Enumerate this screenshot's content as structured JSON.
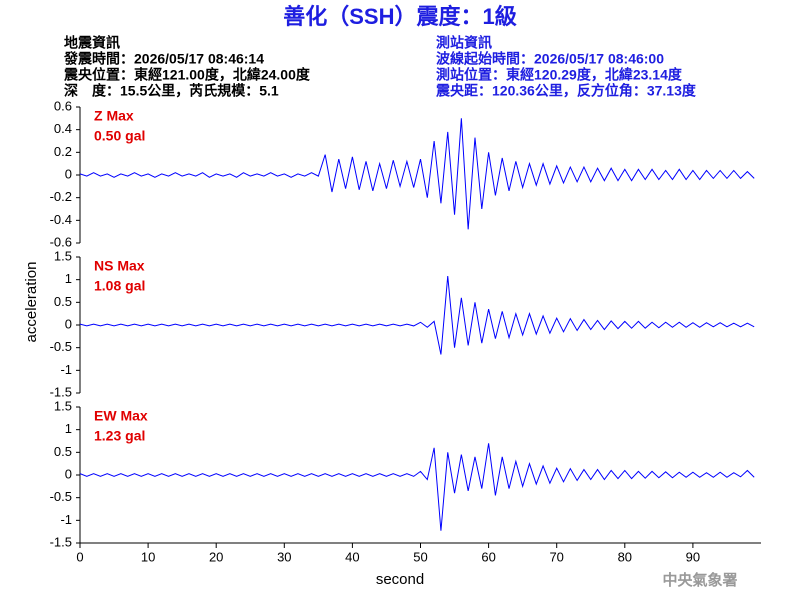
{
  "header": {
    "title": "善化（SSH）震度：1級",
    "left": [
      "地震資訊",
      "發震時間：2026/05/17 08:46:14",
      "震央位置：東經121.00度，北緯24.00度",
      "深　度：15.5公里，芮氏規模：5.1"
    ],
    "right": [
      "測站資訊",
      "波線起始時間：2026/05/17 08:46:00",
      "測站位置：東經120.29度，北緯23.14度",
      "震央距：120.36公里，反方位角：37.13度"
    ],
    "footer": "中央氣象署"
  },
  "chart_data": {
    "type": "line",
    "xlabel": "second",
    "ylabel": "acceleration",
    "xlim": [
      0,
      100
    ],
    "xticks": [
      0,
      10,
      20,
      30,
      40,
      50,
      60,
      70,
      80,
      90
    ],
    "x": [
      0,
      1,
      2,
      3,
      4,
      5,
      6,
      7,
      8,
      9,
      10,
      11,
      12,
      13,
      14,
      15,
      16,
      17,
      18,
      19,
      20,
      21,
      22,
      23,
      24,
      25,
      26,
      27,
      28,
      29,
      30,
      31,
      32,
      33,
      34,
      35,
      36,
      37,
      38,
      39,
      40,
      41,
      42,
      43,
      44,
      45,
      46,
      47,
      48,
      49,
      50,
      51,
      52,
      53,
      54,
      55,
      56,
      57,
      58,
      59,
      60,
      61,
      62,
      63,
      64,
      65,
      66,
      67,
      68,
      69,
      70,
      71,
      72,
      73,
      74,
      75,
      76,
      77,
      78,
      79,
      80,
      81,
      82,
      83,
      84,
      85,
      86,
      87,
      88,
      89,
      90,
      91,
      92,
      93,
      94,
      95,
      96,
      97,
      98,
      99
    ],
    "panels": [
      {
        "name": "Z Max",
        "max_label": "0.50 gal",
        "color": "#0000ff",
        "ylim": [
          -0.6,
          0.6
        ],
        "yticks": [
          0.6,
          0.4,
          0.2,
          0,
          -0.2,
          -0.4,
          -0.6
        ],
        "values": [
          0.01,
          -0.01,
          0.02,
          -0.01,
          0.01,
          -0.02,
          0.01,
          -0.01,
          0.02,
          -0.01,
          0.01,
          -0.02,
          0.01,
          -0.01,
          0.02,
          -0.01,
          0.01,
          -0.01,
          0.02,
          -0.02,
          0.01,
          -0.01,
          0.01,
          -0.02,
          0.02,
          -0.01,
          0.01,
          -0.01,
          0.02,
          -0.01,
          0.01,
          -0.02,
          0.01,
          -0.01,
          0.02,
          -0.01,
          0.18,
          -0.15,
          0.14,
          -0.12,
          0.16,
          -0.13,
          0.12,
          -0.14,
          0.1,
          -0.12,
          0.13,
          -0.1,
          0.12,
          -0.11,
          0.14,
          -0.2,
          0.3,
          -0.25,
          0.38,
          -0.35,
          0.5,
          -0.48,
          0.33,
          -0.3,
          0.2,
          -0.18,
          0.15,
          -0.14,
          0.12,
          -0.11,
          0.1,
          -0.09,
          0.1,
          -0.08,
          0.08,
          -0.07,
          0.07,
          -0.06,
          0.07,
          -0.06,
          0.06,
          -0.05,
          0.06,
          -0.05,
          0.05,
          -0.05,
          0.05,
          -0.04,
          0.05,
          -0.04,
          0.04,
          -0.04,
          0.05,
          -0.04,
          0.04,
          -0.04,
          0.04,
          -0.03,
          0.04,
          -0.03,
          0.04,
          -0.03,
          0.03,
          -0.03
        ]
      },
      {
        "name": "NS Max",
        "max_label": "1.08 gal",
        "color": "#0000ff",
        "ylim": [
          -1.5,
          1.5
        ],
        "yticks": [
          1.5,
          1,
          0.5,
          0,
          -0.5,
          -1,
          -1.5
        ],
        "values": [
          0.02,
          -0.02,
          0.02,
          -0.02,
          0.02,
          -0.02,
          0.02,
          -0.02,
          0.02,
          -0.02,
          0.02,
          -0.02,
          0.02,
          -0.02,
          0.02,
          -0.02,
          0.02,
          -0.02,
          0.02,
          -0.02,
          0.02,
          -0.02,
          0.02,
          -0.02,
          0.02,
          -0.02,
          0.02,
          -0.02,
          0.02,
          -0.02,
          0.02,
          -0.02,
          0.02,
          -0.02,
          0.02,
          -0.02,
          0.02,
          -0.02,
          0.02,
          -0.02,
          0.02,
          -0.02,
          0.02,
          -0.02,
          0.02,
          -0.02,
          0.02,
          -0.02,
          0.02,
          -0.02,
          0.06,
          -0.05,
          0.08,
          -0.65,
          1.08,
          -0.5,
          0.6,
          -0.45,
          0.5,
          -0.4,
          0.35,
          -0.3,
          0.3,
          -0.28,
          0.25,
          -0.22,
          0.25,
          -0.2,
          0.2,
          -0.18,
          0.15,
          -0.15,
          0.14,
          -0.12,
          0.12,
          -0.1,
          0.1,
          -0.1,
          0.09,
          -0.08,
          0.08,
          -0.07,
          0.08,
          -0.07,
          0.06,
          -0.06,
          0.06,
          -0.05,
          0.06,
          -0.05,
          0.05,
          -0.05,
          0.05,
          -0.04,
          0.05,
          -0.04,
          0.04,
          -0.04,
          0.04,
          -0.04
        ]
      },
      {
        "name": "EW Max",
        "max_label": "1.23 gal",
        "color": "#0000ff",
        "ylim": [
          -1.5,
          1.5
        ],
        "yticks": [
          1.5,
          1,
          0.5,
          0,
          -0.5,
          -1,
          -1.5
        ],
        "values": [
          0.03,
          -0.03,
          0.03,
          -0.03,
          0.03,
          -0.03,
          0.03,
          -0.03,
          0.03,
          -0.03,
          0.03,
          -0.03,
          0.03,
          -0.03,
          0.03,
          -0.03,
          0.03,
          -0.03,
          0.03,
          -0.03,
          0.03,
          -0.03,
          0.03,
          -0.03,
          0.03,
          -0.03,
          0.03,
          -0.03,
          0.03,
          -0.03,
          0.03,
          -0.03,
          0.03,
          -0.03,
          0.03,
          -0.03,
          0.03,
          -0.03,
          0.03,
          -0.03,
          0.03,
          -0.03,
          0.03,
          -0.03,
          0.03,
          -0.03,
          0.03,
          -0.03,
          0.03,
          -0.03,
          0.08,
          -0.1,
          0.6,
          -1.23,
          0.5,
          -0.4,
          0.45,
          -0.35,
          0.4,
          -0.3,
          0.7,
          -0.45,
          0.4,
          -0.3,
          0.3,
          -0.25,
          0.25,
          -0.2,
          0.2,
          -0.18,
          0.15,
          -0.15,
          0.14,
          -0.12,
          0.12,
          -0.1,
          0.12,
          -0.1,
          0.1,
          -0.08,
          0.1,
          -0.08,
          0.08,
          -0.07,
          0.08,
          -0.06,
          0.07,
          -0.06,
          0.06,
          -0.05,
          0.06,
          -0.05,
          0.05,
          -0.05,
          0.06,
          -0.05,
          0.05,
          -0.04,
          0.1,
          -0.05
        ]
      }
    ]
  }
}
